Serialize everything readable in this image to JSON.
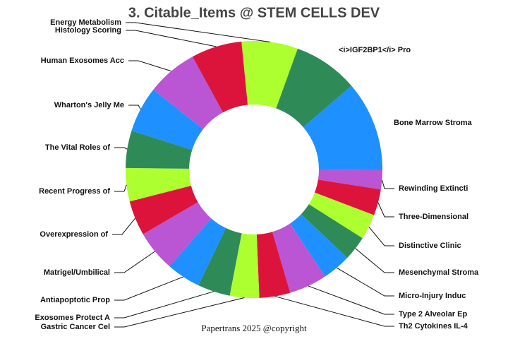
{
  "chart_data": {
    "type": "donut",
    "title": "3. Citable_Items @ STEM CELLS DEV",
    "footer": "Papertrans 2025 @copyright",
    "categories": [
      "Energy Metabolism",
      "<i>IGF2BP1</i> Pro",
      "Bone Marrow Stroma",
      "Rewinding Extincti",
      "Three-Dimensional",
      "Distinctive Clinic",
      "Mesenchymal Stroma",
      "Micro-Injury Induc",
      "Type 2 Alveolar Ep",
      "Th2 Cytokines IL-4",
      "Gastric Cancer Cel",
      "Exosomes Protect A",
      "Antiapoptotic Prop",
      "Matrigel/Umbilical",
      "Overexpression of ",
      "Recent Progress of",
      "The Vital Roles of",
      "Wharton's Jelly Me",
      "Human Exosomes Acc",
      "Histology Scoring"
    ],
    "values": [
      7.1,
      8.2,
      11.4,
      2.4,
      3.3,
      3.2,
      3.1,
      3.6,
      4.8,
      3.9,
      3.7,
      4.1,
      4.3,
      5.2,
      4.4,
      4.2,
      4.7,
      5.8,
      6.4,
      6.4
    ],
    "colors": [
      "#adff2f",
      "#2e8b57",
      "#1e90ff",
      "#ba55d3",
      "#dc143c"
    ]
  }
}
